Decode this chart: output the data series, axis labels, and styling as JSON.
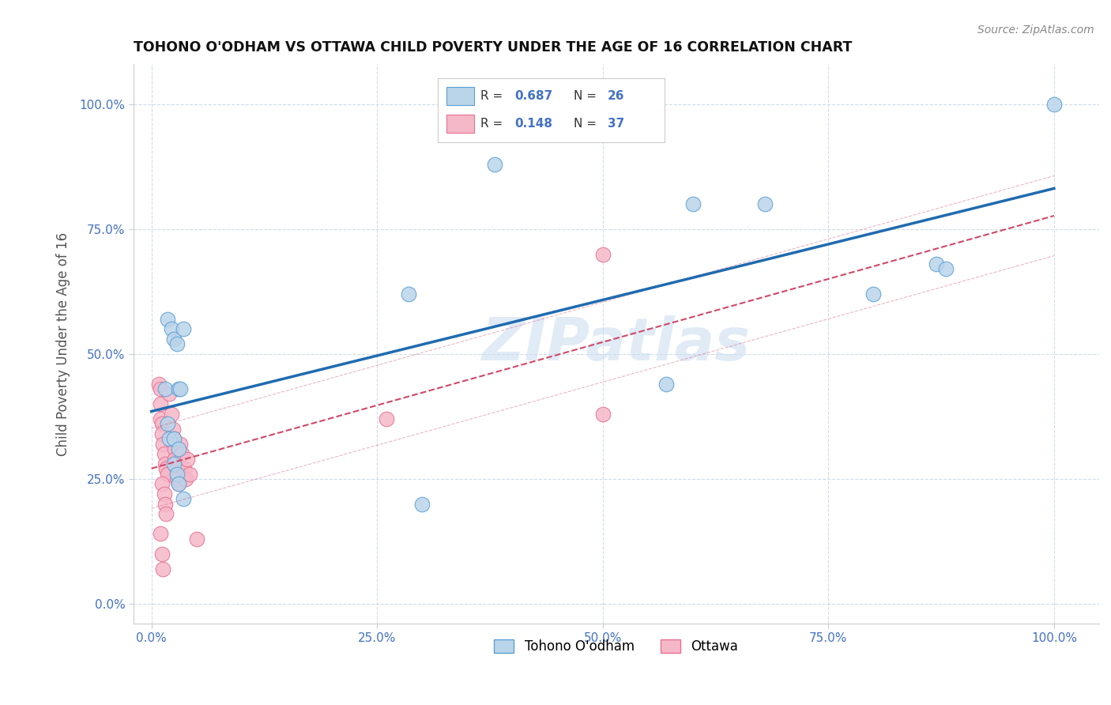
{
  "title": "TOHONO O'ODHAM VS OTTAWA CHILD POVERTY UNDER THE AGE OF 16 CORRELATION CHART",
  "source": "Source: ZipAtlas.com",
  "ylabel": "Child Poverty Under the Age of 16",
  "watermark": "ZIPatlas",
  "tohono_R": "0.687",
  "tohono_N": "26",
  "ottawa_R": "0.148",
  "ottawa_N": "37",
  "tohono_color": "#bad4ea",
  "tohono_edge_color": "#5a9fd4",
  "tohono_line_color": "#1f6bb0",
  "ottawa_color": "#f5b8c8",
  "ottawa_edge_color": "#e87090",
  "ottawa_line_color": "#d04868",
  "background": "#ffffff",
  "grid_color": "#d0dce8",
  "tick_color": "#4472c4",
  "tohono_points": [
    [
      0.015,
      0.43
    ],
    [
      0.018,
      0.57
    ],
    [
      0.022,
      0.55
    ],
    [
      0.025,
      0.53
    ],
    [
      0.028,
      0.52
    ],
    [
      0.03,
      0.43
    ],
    [
      0.032,
      0.43
    ],
    [
      0.035,
      0.55
    ],
    [
      0.018,
      0.36
    ],
    [
      0.02,
      0.33
    ],
    [
      0.025,
      0.33
    ],
    [
      0.03,
      0.31
    ],
    [
      0.025,
      0.28
    ],
    [
      0.028,
      0.26
    ],
    [
      0.03,
      0.24
    ],
    [
      0.035,
      0.21
    ],
    [
      0.285,
      0.62
    ],
    [
      0.3,
      0.2
    ],
    [
      0.38,
      0.88
    ],
    [
      0.57,
      0.44
    ],
    [
      0.6,
      0.8
    ],
    [
      0.68,
      0.8
    ],
    [
      0.8,
      0.62
    ],
    [
      0.87,
      0.68
    ],
    [
      0.88,
      0.67
    ],
    [
      1.0,
      1.0
    ]
  ],
  "ottawa_points": [
    [
      0.008,
      0.44
    ],
    [
      0.01,
      0.43
    ],
    [
      0.01,
      0.4
    ],
    [
      0.01,
      0.37
    ],
    [
      0.012,
      0.36
    ],
    [
      0.012,
      0.34
    ],
    [
      0.013,
      0.32
    ],
    [
      0.014,
      0.3
    ],
    [
      0.015,
      0.28
    ],
    [
      0.016,
      0.27
    ],
    [
      0.018,
      0.26
    ],
    [
      0.012,
      0.24
    ],
    [
      0.014,
      0.22
    ],
    [
      0.015,
      0.2
    ],
    [
      0.016,
      0.18
    ],
    [
      0.01,
      0.14
    ],
    [
      0.012,
      0.1
    ],
    [
      0.013,
      0.07
    ],
    [
      0.02,
      0.42
    ],
    [
      0.022,
      0.38
    ],
    [
      0.024,
      0.35
    ],
    [
      0.025,
      0.33
    ],
    [
      0.026,
      0.31
    ],
    [
      0.026,
      0.29
    ],
    [
      0.028,
      0.27
    ],
    [
      0.028,
      0.25
    ],
    [
      0.03,
      0.24
    ],
    [
      0.032,
      0.32
    ],
    [
      0.034,
      0.3
    ],
    [
      0.036,
      0.27
    ],
    [
      0.038,
      0.25
    ],
    [
      0.04,
      0.29
    ],
    [
      0.042,
      0.26
    ],
    [
      0.05,
      0.13
    ],
    [
      0.26,
      0.37
    ],
    [
      0.5,
      0.38
    ],
    [
      0.5,
      0.7
    ]
  ],
  "xlim": [
    -0.02,
    1.05
  ],
  "ylim": [
    -0.04,
    1.08
  ],
  "xticks": [
    0.0,
    0.25,
    0.5,
    0.75,
    1.0
  ],
  "yticks": [
    0.0,
    0.25,
    0.5,
    0.75,
    1.0
  ],
  "xticklabels": [
    "0.0%",
    "25.0%",
    "50.0%",
    "75.0%",
    "100.0%"
  ],
  "yticklabels": [
    "0.0%",
    "25.0%",
    "50.0%",
    "75.0%",
    "100.0%"
  ]
}
